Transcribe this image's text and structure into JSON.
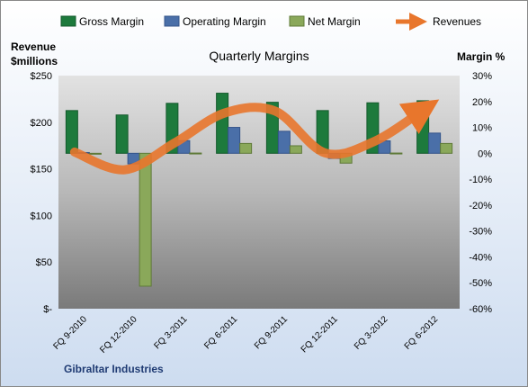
{
  "chart_data": {
    "type": "bar",
    "title": "Quarterly Margins",
    "left_axis_title": [
      "Revenue",
      "$millions"
    ],
    "right_axis_title": "Margin %",
    "company": "Gibraltar Industries",
    "categories": [
      "FQ 9-2010",
      "FQ 12-2010",
      "FQ 3-2011",
      "FQ 6-2011",
      "FQ 9-2011",
      "FQ 12-2011",
      "FQ 3-2012",
      "FQ 6-2012"
    ],
    "left_ticks": [
      "$-",
      "$50",
      "$100",
      "$150",
      "$200",
      "$250"
    ],
    "right_ticks": [
      "-60%",
      "-50%",
      "-40%",
      "-30%",
      "-20%",
      "-10%",
      "0%",
      "10%",
      "20%",
      "30%"
    ],
    "left_ylim": [
      0,
      250
    ],
    "right_ylim": [
      -60,
      30
    ],
    "legend_position": "top",
    "series": [
      {
        "name": "Gross Margin",
        "kind": "bar",
        "axis": "right",
        "color": "#1d7a3c",
        "values": [
          16.5,
          14.8,
          19.3,
          23.2,
          19.7,
          16.5,
          19.5,
          20.3
        ]
      },
      {
        "name": "Operating Margin",
        "kind": "bar",
        "axis": "right",
        "color": "#4a6fa8",
        "values": [
          0.3,
          -4.1,
          4.9,
          10.0,
          8.5,
          -2.0,
          4.8,
          7.8
        ]
      },
      {
        "name": "Net Margin",
        "kind": "bar",
        "axis": "right",
        "color": "#8aa85a",
        "values": [
          -0.3,
          -51.3,
          0.1,
          3.8,
          2.9,
          -3.8,
          0.1,
          3.8
        ]
      },
      {
        "name": "Revenues",
        "kind": "line",
        "axis": "left",
        "color": "#e8762c",
        "values": [
          168,
          149,
          178,
          210,
          212,
          167,
          180,
          215
        ]
      }
    ]
  }
}
